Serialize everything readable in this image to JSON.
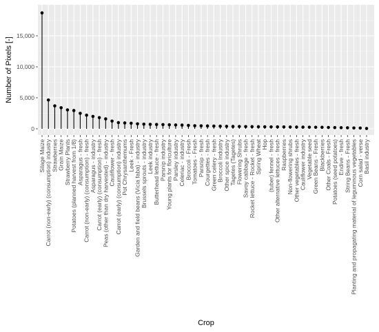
{
  "chart_data": {
    "type": "lollipop",
    "xlabel": "Crop",
    "ylabel": "Number of Pixels [-]",
    "ylim": [
      0,
      19000
    ],
    "y_ticks": [
      0,
      5000,
      10000,
      15000
    ],
    "y_tick_labels": [
      "0",
      "5,000",
      "10,000",
      "15,000"
    ],
    "grid": true,
    "background": "#ebebeb",
    "categories": [
      "Silage Maize",
      "Carrot (non-early) (consumption) industry",
      "Strawberries",
      "Grain Maize",
      "Strawberry Plants",
      "Potatoes (planned harvest from 1/8)",
      "Asparagus - fresh",
      "Carrot (non-early) (consumption) - fresh",
      "Asparagus - industry",
      "Carrot (early) (consumption) - fresh",
      "Peas (other than dry harvested) - industry",
      "Cauliflower - fresh",
      "Carrot (early) (consumption) industry",
      "Pot Chrysanthemums",
      "Leek - Fresh",
      "Garden and field beans (Vicia faba) - industry",
      "Brussels sprouts - industry",
      "Leek industry",
      "Butterhead lettuce - fresh",
      "Parsnip industry",
      "Young plants for floriculture",
      "Parsley industry",
      "Celeriac - industry",
      "Broccoli - Fresh",
      "Tomatoes - Fresh",
      "Parsnip - fresh",
      "Courgettes - fresh",
      "Green celery - fresh",
      "Broccoli Industry",
      "Other spice industry",
      "Tagetes (Tagetes)",
      "Flowering Shrubs",
      "Savoy cabbage - fresh",
      "Rocket lettuce - Rocket - fresh",
      "Spring Wheat",
      "Hop",
      "(tuber) fennel - fresh",
      "Other alternative lettuces - fresh",
      "Raspberries",
      "Non-flowering shrubs",
      "Other vegetables - fresh",
      "Cauliflower industry",
      "Vegetable seed",
      "Green Beans - Fresh",
      "Blackberries",
      "Other Coals - Fresh",
      "Potatoes (seed potatoes)",
      "Endive - fresh",
      "String Beans - Fresh",
      "Planting and propagating material of leguminous vegetables",
      "Corn salad - verse",
      "Basil industry"
    ],
    "values": [
      18700,
      4650,
      3700,
      3400,
      3050,
      2950,
      2500,
      2200,
      2000,
      1800,
      1600,
      1250,
      1000,
      950,
      900,
      800,
      750,
      720,
      700,
      680,
      650,
      620,
      600,
      550,
      500,
      480,
      460,
      440,
      420,
      400,
      380,
      370,
      360,
      350,
      340,
      330,
      320,
      310,
      300,
      290,
      280,
      270,
      260,
      250,
      240,
      220,
      200,
      180,
      160,
      140,
      120,
      50
    ]
  }
}
